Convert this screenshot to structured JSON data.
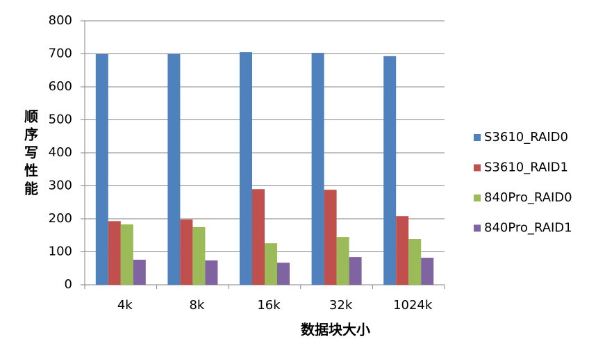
{
  "chart_data": {
    "type": "bar",
    "x_label": "数据块大小",
    "y_label": "顺序写性能",
    "categories": [
      "4k",
      "8k",
      "16k",
      "32k",
      "1024k"
    ],
    "series": [
      {
        "name": "S3610_RAID0",
        "color": "#4f81bd",
        "values": [
          699,
          699,
          705,
          703,
          693
        ]
      },
      {
        "name": "S3610_RAID1",
        "color": "#c0504d",
        "values": [
          193,
          198,
          290,
          288,
          208
        ]
      },
      {
        "name": "840Pro_RAID0",
        "color": "#9bbb59",
        "values": [
          183,
          175,
          126,
          145,
          139
        ]
      },
      {
        "name": "840Pro_RAID1",
        "color": "#8064a2",
        "values": [
          76,
          74,
          67,
          84,
          82
        ]
      }
    ],
    "ylim": [
      0,
      800
    ],
    "yticks": [
      0,
      100,
      200,
      300,
      400,
      500,
      600,
      700,
      800
    ],
    "grid": true,
    "legend": "right"
  }
}
